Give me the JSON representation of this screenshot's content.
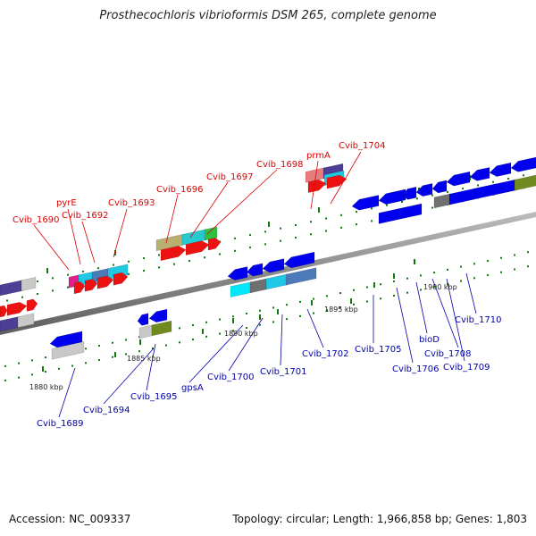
{
  "title": "Prosthecochloris vibrioformis DSM 265, complete genome",
  "footer": {
    "accession_label": "Accession: NC_009337",
    "topology_label": "Topology: circular; Length: 1,966,858 bp; Genes: 1,803"
  },
  "colors": {
    "label_top": "#dd0000",
    "label_bottom": "#0000aa",
    "backbone": "#888888",
    "tick": "#117711"
  },
  "kbp_labels": [
    {
      "id": "k1880",
      "text": "1880 kbp"
    },
    {
      "id": "k1885",
      "text": "1885 kbp"
    },
    {
      "id": "k1890",
      "text": "1890 kbp"
    },
    {
      "id": "k1895",
      "text": "1895 kbp"
    },
    {
      "id": "k1900",
      "text": "1900 kbp"
    }
  ],
  "gene_labels_top": [
    {
      "id": "cvib1690",
      "text": "Cvib_1690"
    },
    {
      "id": "pyrE",
      "text": "pyrE"
    },
    {
      "id": "cvib1692",
      "text": "Cvib_1692"
    },
    {
      "id": "cvib1693",
      "text": "Cvib_1693"
    },
    {
      "id": "cvib1696",
      "text": "Cvib_1696"
    },
    {
      "id": "cvib1697",
      "text": "Cvib_1697"
    },
    {
      "id": "cvib1698",
      "text": "Cvib_1698"
    },
    {
      "id": "prmA",
      "text": "prmA"
    },
    {
      "id": "cvib1704",
      "text": "Cvib_1704"
    }
  ],
  "gene_labels_bottom": [
    {
      "id": "cvib1689",
      "text": "Cvib_1689"
    },
    {
      "id": "cvib1694",
      "text": "Cvib_1694"
    },
    {
      "id": "cvib1695",
      "text": "Cvib_1695"
    },
    {
      "id": "gpsA",
      "text": "gpsA"
    },
    {
      "id": "cvib1700",
      "text": "Cvib_1700"
    },
    {
      "id": "cvib1701",
      "text": "Cvib_1701"
    },
    {
      "id": "cvib1702",
      "text": "Cvib_1702"
    },
    {
      "id": "cvib1705",
      "text": "Cvib_1705"
    },
    {
      "id": "cvib1706",
      "text": "Cvib_1706"
    },
    {
      "id": "bioD",
      "text": "bioD"
    },
    {
      "id": "cvib1708",
      "text": "Cvib_1708"
    },
    {
      "id": "cvib1709",
      "text": "Cvib_1709"
    },
    {
      "id": "cvib1710",
      "text": "Cvib_1710"
    }
  ]
}
